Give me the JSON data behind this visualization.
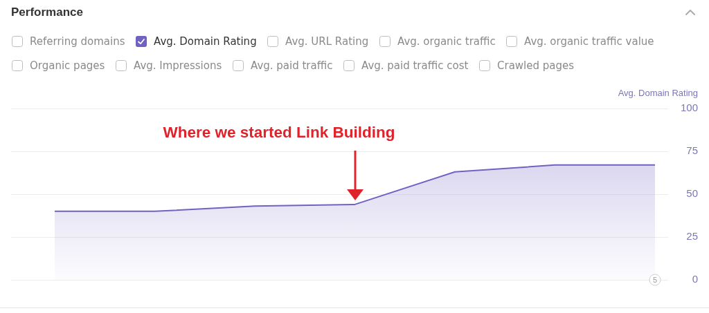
{
  "chart_data": {
    "type": "area",
    "title": "Performance",
    "ylabel": "Avg. Domain Rating",
    "categories": [
      null,
      null,
      null,
      null,
      null,
      null,
      null
    ],
    "series": [
      {
        "name": "Avg. Domain Rating",
        "color": "#6f62c0",
        "values": [
          40,
          40,
          43,
          44,
          63,
          67,
          67
        ]
      }
    ],
    "ylim": [
      0,
      100
    ],
    "yticks": [
      0,
      25,
      50,
      75,
      100
    ],
    "grid": "y",
    "legend": "top left",
    "tick_labels": "y",
    "annotations": [
      "Referring domains",
      "Avg. URL Rating",
      "Avg. organic traffic",
      "Avg. organic traffic value",
      "Organic pages",
      "Avg. Impressions",
      "Avg. paid traffic",
      "Avg. paid traffic cost",
      "Crawled pages",
      "Where we started Link Building",
      {
        "text": "5",
        "y": 0
      }
    ]
  }
}
